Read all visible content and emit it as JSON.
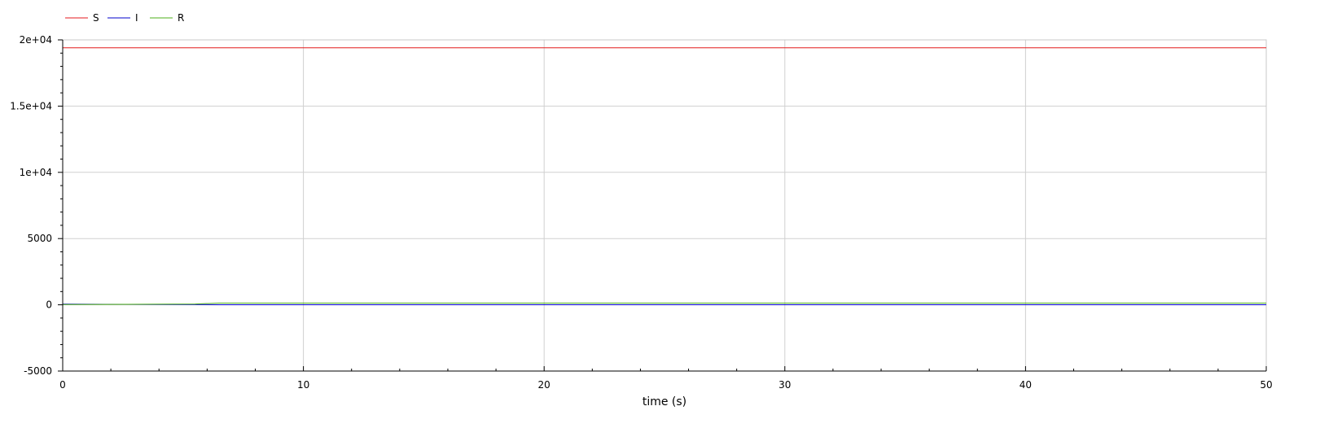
{
  "chart_data": {
    "type": "line",
    "title": "",
    "xlabel": "time (s)",
    "ylabel": "",
    "xlim": [
      0,
      50
    ],
    "ylim": [
      -5000,
      20000
    ],
    "x_ticks": [
      0,
      10,
      20,
      30,
      40,
      50
    ],
    "x_tick_labels": [
      "0",
      "10",
      "20",
      "30",
      "40",
      "50"
    ],
    "y_ticks": [
      -5000,
      0,
      5000,
      10000,
      15000,
      20000
    ],
    "y_tick_labels": [
      "-5000",
      "0",
      "5000",
      "1e+04",
      "1.5e+04",
      "2e+04"
    ],
    "grid": true,
    "legend_position": "top-left",
    "series": [
      {
        "name": "S",
        "color": "#e41a1c",
        "x": [
          0,
          50
        ],
        "y": [
          19400,
          19400
        ]
      },
      {
        "name": "I",
        "color": "#0000cc",
        "x": [
          0,
          5.5,
          6.5,
          50
        ],
        "y": [
          50,
          20,
          5,
          5
        ]
      },
      {
        "name": "R",
        "color": "#4daf1a",
        "x": [
          0,
          5.5,
          6.5,
          50
        ],
        "y": [
          20,
          60,
          130,
          130
        ]
      }
    ]
  }
}
